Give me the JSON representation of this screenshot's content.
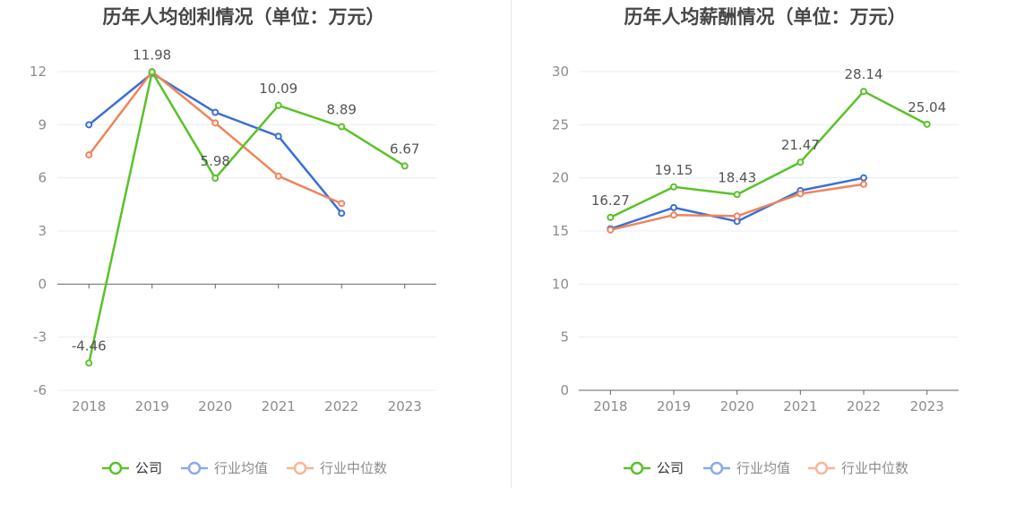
{
  "colors": {
    "company": "#5ac229",
    "industry_avg": "#3a6fd8",
    "industry_median": "#f0845a",
    "legend_avg": "#8da9ec",
    "legend_median": "#f7b59a",
    "grid": "#e8ecf4",
    "axis": "#666666"
  },
  "legend": {
    "company": "公司",
    "industry_avg": "行业均值",
    "industry_median": "行业中位数"
  },
  "chart_data": [
    {
      "type": "line",
      "title": "历年人均创利情况（单位：万元）",
      "categories": [
        "2018",
        "2019",
        "2020",
        "2021",
        "2022",
        "2023"
      ],
      "yticks": [
        "12",
        "9",
        "6",
        "3",
        "0",
        "-3",
        "-6"
      ],
      "ylim": [
        -6,
        12
      ],
      "grid": true,
      "legend_position": "bottom",
      "series": [
        {
          "name": "公司",
          "key": "company",
          "values": [
            -4.46,
            11.98,
            5.98,
            10.09,
            8.89,
            6.67
          ],
          "labels": [
            "-4.46",
            "11.98",
            "5.98",
            "10.09",
            "8.89",
            "6.67"
          ]
        },
        {
          "name": "行业均值",
          "key": "industry_avg",
          "values": [
            9.0,
            11.9,
            9.7,
            8.35,
            4.0,
            null
          ]
        },
        {
          "name": "行业中位数",
          "key": "industry_median",
          "values": [
            7.3,
            12.0,
            9.1,
            6.1,
            4.55,
            null
          ]
        }
      ]
    },
    {
      "type": "line",
      "title": "历年人均薪酬情况（单位：万元）",
      "categories": [
        "2018",
        "2019",
        "2020",
        "2021",
        "2022",
        "2023"
      ],
      "yticks": [
        "30",
        "25",
        "20",
        "15",
        "10",
        "5",
        "0"
      ],
      "ylim": [
        0,
        30
      ],
      "grid": true,
      "legend_position": "bottom",
      "series": [
        {
          "name": "公司",
          "key": "company",
          "values": [
            16.27,
            19.15,
            18.43,
            21.47,
            28.14,
            25.04
          ],
          "labels": [
            "16.27",
            "19.15",
            "18.43",
            "21.47",
            "28.14",
            "25.04"
          ]
        },
        {
          "name": "行业均值",
          "key": "industry_avg",
          "values": [
            15.2,
            17.2,
            15.9,
            18.8,
            20.0,
            null
          ]
        },
        {
          "name": "行业中位数",
          "key": "industry_median",
          "values": [
            15.1,
            16.5,
            16.4,
            18.5,
            19.4,
            null
          ]
        }
      ]
    }
  ]
}
